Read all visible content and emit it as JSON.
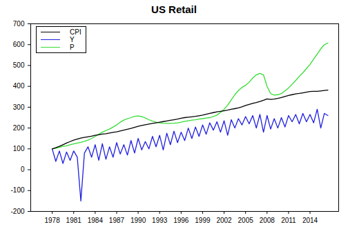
{
  "chart_data": {
    "type": "line",
    "title": "US Retail",
    "legend": "top-left",
    "x": [
      1978,
      1978.5,
      1979,
      1979.5,
      1980,
      1980.5,
      1981,
      1981.5,
      1982,
      1982.5,
      1983,
      1983.5,
      1984,
      1984.5,
      1985,
      1985.5,
      1986,
      1986.5,
      1987,
      1987.5,
      1988,
      1988.5,
      1989,
      1989.5,
      1990,
      1990.5,
      1991,
      1991.5,
      1992,
      1992.5,
      1993,
      1993.5,
      1994,
      1994.5,
      1995,
      1995.5,
      1996,
      1996.5,
      1997,
      1997.5,
      1998,
      1998.5,
      1999,
      1999.5,
      2000,
      2000.5,
      2001,
      2001.5,
      2002,
      2002.5,
      2003,
      2003.5,
      2004,
      2004.5,
      2005,
      2005.5,
      2006,
      2006.5,
      2007,
      2007.5,
      2008,
      2008.5,
      2009,
      2009.5,
      2010,
      2010.5,
      2011,
      2011.5,
      2012,
      2012.5,
      2013,
      2013.5,
      2014,
      2014.5,
      2015,
      2015.5,
      2016,
      2016.5
    ],
    "series": [
      {
        "name": "CPI",
        "color": "#000000",
        "values": [
          100,
          106,
          112,
          120,
          128,
          135,
          142,
          147,
          152,
          155,
          158,
          161,
          165,
          168,
          171,
          173,
          176,
          179,
          182,
          186,
          190,
          194,
          198,
          203,
          208,
          212,
          216,
          219,
          222,
          225,
          228,
          231,
          234,
          237,
          240,
          243,
          247,
          250,
          252,
          254,
          256,
          259,
          262,
          266,
          270,
          274,
          278,
          280,
          283,
          286,
          290,
          293,
          297,
          302,
          308,
          313,
          318,
          322,
          327,
          333,
          340,
          337,
          339,
          342,
          346,
          351,
          356,
          360,
          364,
          366,
          369,
          372,
          375,
          376,
          376,
          378,
          380,
          382
        ]
      },
      {
        "name": "Y",
        "color": "#1f1fe0",
        "values": [
          100,
          40,
          90,
          30,
          85,
          45,
          90,
          60,
          -150,
          80,
          110,
          60,
          120,
          45,
          125,
          50,
          110,
          60,
          130,
          75,
          120,
          70,
          140,
          80,
          150,
          95,
          135,
          100,
          160,
          110,
          165,
          95,
          175,
          120,
          185,
          130,
          180,
          140,
          200,
          150,
          205,
          160,
          215,
          170,
          225,
          190,
          230,
          180,
          235,
          165,
          240,
          200,
          245,
          215,
          255,
          220,
          260,
          200,
          265,
          180,
          260,
          195,
          245,
          200,
          250,
          205,
          260,
          230,
          265,
          220,
          270,
          230,
          265,
          225,
          290,
          200,
          270,
          260
        ]
      },
      {
        "name": "P",
        "color": "#33dd33",
        "values": [
          100,
          103,
          107,
          112,
          115,
          120,
          124,
          128,
          131,
          136,
          142,
          150,
          160,
          170,
          180,
          188,
          195,
          205,
          215,
          228,
          238,
          245,
          250,
          256,
          258,
          255,
          248,
          240,
          233,
          228,
          225,
          223,
          222,
          222,
          223,
          225,
          228,
          232,
          235,
          238,
          240,
          243,
          245,
          248,
          250,
          255,
          262,
          275,
          290,
          310,
          335,
          360,
          380,
          395,
          405,
          420,
          440,
          455,
          462,
          455,
          400,
          365,
          358,
          360,
          365,
          378,
          392,
          410,
          428,
          448,
          465,
          485,
          505,
          530,
          555,
          580,
          600,
          608
        ]
      }
    ],
    "xlim": [
      1975,
      2018
    ],
    "xticks": [
      1978,
      1981,
      1984,
      1987,
      1990,
      1993,
      1996,
      1999,
      2002,
      2005,
      2008,
      2011,
      2014
    ],
    "ylim": [
      -200,
      700
    ],
    "yticks": [
      -200,
      -100,
      0,
      100,
      200,
      300,
      400,
      500,
      600,
      700
    ],
    "grid": false
  }
}
